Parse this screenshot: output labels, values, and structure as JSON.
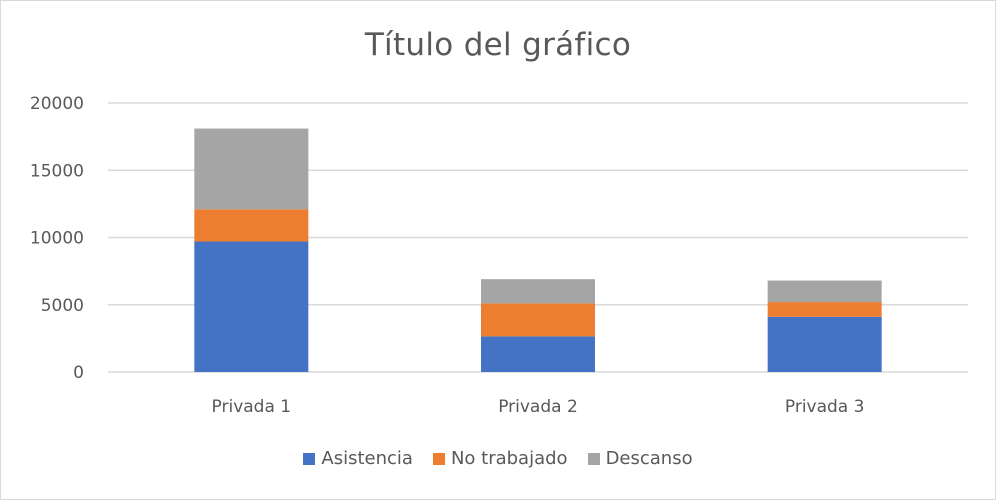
{
  "chart_data": {
    "type": "bar",
    "stacked": true,
    "title": "Título del gráfico",
    "xlabel": "",
    "ylabel": "",
    "categories": [
      "Privada 1",
      "Privada 2",
      "Privada 3"
    ],
    "series": [
      {
        "name": "Asistencia",
        "color": "#4472c4",
        "values": [
          9700,
          2650,
          4100
        ]
      },
      {
        "name": "No trabajado",
        "color": "#ed7d31",
        "values": [
          2400,
          2450,
          1100
        ]
      },
      {
        "name": "Descanso",
        "color": "#a5a5a5",
        "values": [
          6000,
          1800,
          1600
        ]
      }
    ],
    "ylim": [
      0,
      20000
    ],
    "yticks": [
      "0",
      "5000",
      "10000",
      "15000",
      "20000"
    ],
    "grid": true,
    "legend_position": "bottom"
  }
}
